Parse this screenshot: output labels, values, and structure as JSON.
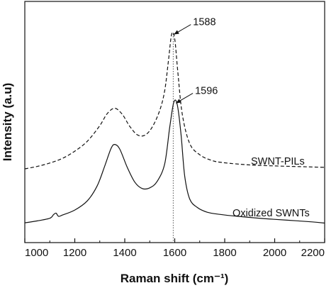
{
  "chart_data": {
    "type": "line",
    "title": "",
    "xlabel": "Raman shift (cm⁻¹)",
    "ylabel": "Intensity (a.u)",
    "xlim": [
      1000,
      2200
    ],
    "ylim": [
      0,
      100
    ],
    "x_ticks": [
      "1000",
      "1200",
      "1400",
      "1600",
      "1800",
      "2000",
      "2200"
    ],
    "y_ticks_shown": false,
    "grid": false,
    "legend": "none (series labelled inline on the right)",
    "series": [
      {
        "name": "SWNT-PILs",
        "line_style": "dashed",
        "color": "#111111",
        "points": [
          [
            1000,
            30.6
          ],
          [
            1050,
            31.6
          ],
          [
            1100,
            33.0
          ],
          [
            1150,
            34.9
          ],
          [
            1200,
            37.9
          ],
          [
            1250,
            42.0
          ],
          [
            1300,
            48.5
          ],
          [
            1330,
            53.5
          ],
          [
            1360,
            55.7
          ],
          [
            1390,
            53.2
          ],
          [
            1420,
            48.2
          ],
          [
            1450,
            44.7
          ],
          [
            1480,
            44.5
          ],
          [
            1510,
            47.9
          ],
          [
            1540,
            54.8
          ],
          [
            1560,
            63.1
          ],
          [
            1575,
            75.6
          ],
          [
            1588,
            86.6
          ],
          [
            1600,
            84.4
          ],
          [
            1612,
            71.2
          ],
          [
            1630,
            53.3
          ],
          [
            1660,
            41.1
          ],
          [
            1700,
            36.4
          ],
          [
            1750,
            34.0
          ],
          [
            1800,
            33.1
          ],
          [
            1900,
            32.2
          ],
          [
            2000,
            31.8
          ],
          [
            2100,
            31.5
          ],
          [
            2200,
            31.2
          ]
        ]
      },
      {
        "name": "Oxidized SWNTs",
        "line_style": "solid",
        "color": "#111111",
        "points": [
          [
            1000,
            8.2
          ],
          [
            1050,
            9.0
          ],
          [
            1100,
            10.1
          ],
          [
            1115,
            11.6
          ],
          [
            1125,
            12.2
          ],
          [
            1135,
            10.9
          ],
          [
            1150,
            11.4
          ],
          [
            1200,
            13.5
          ],
          [
            1250,
            17.3
          ],
          [
            1290,
            23.6
          ],
          [
            1320,
            31.8
          ],
          [
            1345,
            39.0
          ],
          [
            1360,
            40.7
          ],
          [
            1380,
            38.8
          ],
          [
            1410,
            31.2
          ],
          [
            1440,
            25.1
          ],
          [
            1470,
            22.4
          ],
          [
            1500,
            22.7
          ],
          [
            1530,
            25.4
          ],
          [
            1560,
            32.7
          ],
          [
            1580,
            47.8
          ],
          [
            1596,
            58.1
          ],
          [
            1610,
            57.3
          ],
          [
            1625,
            45.1
          ],
          [
            1640,
            27.5
          ],
          [
            1660,
            18.1
          ],
          [
            1690,
            14.6
          ],
          [
            1730,
            12.6
          ],
          [
            1780,
            11.7
          ],
          [
            1850,
            10.9
          ],
          [
            1950,
            10.0
          ],
          [
            2050,
            9.3
          ],
          [
            2150,
            8.6
          ],
          [
            2200,
            8.1
          ]
        ]
      }
    ],
    "annotations": [
      {
        "text": "1588",
        "x": 1588,
        "target_y": 86.6
      },
      {
        "text": "1596",
        "x": 1596,
        "target_y": 58.1
      },
      {
        "text": "SWNT-PILs",
        "series": "SWNT-PILs"
      },
      {
        "text": "Oxidized SWNTs",
        "series": "Oxidized SWNTs"
      }
    ],
    "reference_line": {
      "x": 1594,
      "style": "dotted"
    }
  }
}
